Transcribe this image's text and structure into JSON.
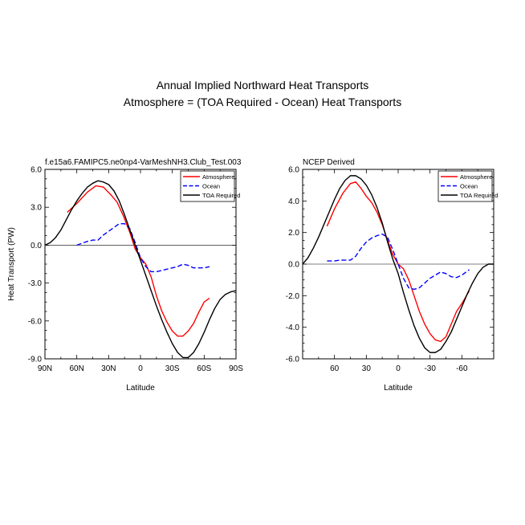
{
  "figure": {
    "title_line1": "Annual Implied Northward Heat Transports",
    "title_line2": "Atmosphere = (TOA Required - Ocean) Heat Transports"
  },
  "colors": {
    "atmosphere": "#ff0000",
    "ocean": "#0000ff",
    "toa": "#000000"
  },
  "chart_data": [
    {
      "type": "line",
      "title": "f.e15a6.FAMIPC5.ne0np4-VarMeshNH3.Club_Test.003",
      "xlabel": "Latitude",
      "ylabel": "Heat Transport (PW)",
      "xlim": [
        90,
        -90
      ],
      "ylim": [
        -9,
        6
      ],
      "xticks": [
        90,
        60,
        30,
        0,
        -30,
        -60,
        -90
      ],
      "xtick_labels": [
        "90N",
        "60N",
        "30N",
        "0",
        "30S",
        "60S",
        "90S"
      ],
      "yticks": [
        6,
        3,
        0,
        -3,
        -6,
        -9
      ],
      "ytick_labels": [
        "6.0",
        "3.0",
        "0.0",
        "-3.0",
        "-6.0",
        "-9.0"
      ],
      "legend": [
        "Atmosphere",
        "Ocean",
        "TOA Required"
      ],
      "legend_position": "top-right",
      "series": [
        {
          "name": "Atmosphere",
          "style": "solid",
          "x": [
            69,
            60,
            50,
            42,
            35,
            28,
            22,
            16,
            10,
            5,
            0,
            -5,
            -10,
            -15,
            -20,
            -25,
            -30,
            -35,
            -40,
            -45,
            -50,
            -55,
            -60,
            -65
          ],
          "y": [
            2.6,
            3.3,
            4.2,
            4.7,
            4.6,
            4.0,
            3.4,
            2.3,
            1.0,
            -0.3,
            -1.0,
            -1.5,
            -2.5,
            -4.0,
            -5.2,
            -6.1,
            -6.8,
            -7.2,
            -7.2,
            -6.8,
            -6.2,
            -5.3,
            -4.5,
            -4.2
          ]
        },
        {
          "name": "Ocean",
          "style": "dashed",
          "x": [
            60,
            50,
            45,
            40,
            35,
            30,
            25,
            20,
            15,
            10,
            5,
            0,
            -5,
            -10,
            -15,
            -20,
            -25,
            -30,
            -35,
            -40,
            -45,
            -50,
            -55,
            -60,
            -65
          ],
          "y": [
            0.0,
            0.3,
            0.4,
            0.4,
            0.8,
            1.1,
            1.4,
            1.7,
            1.7,
            1.3,
            0.2,
            -1.0,
            -1.7,
            -2.1,
            -2.1,
            -2.0,
            -1.9,
            -1.8,
            -1.7,
            -1.5,
            -1.6,
            -1.8,
            -1.8,
            -1.8,
            -1.7
          ]
        },
        {
          "name": "TOA Required",
          "style": "solid",
          "x": [
            90,
            85,
            80,
            75,
            70,
            65,
            60,
            55,
            50,
            45,
            40,
            35,
            30,
            25,
            20,
            15,
            10,
            5,
            0,
            -5,
            -10,
            -15,
            -20,
            -25,
            -30,
            -35,
            -40,
            -45,
            -50,
            -55,
            -60,
            -65,
            -70,
            -75,
            -80,
            -85,
            -90
          ],
          "y": [
            0.0,
            0.2,
            0.6,
            1.2,
            2.0,
            2.8,
            3.5,
            4.1,
            4.6,
            4.9,
            5.1,
            5.0,
            4.8,
            4.3,
            3.5,
            2.4,
            1.2,
            0.0,
            -1.2,
            -2.4,
            -3.6,
            -4.8,
            -5.9,
            -6.9,
            -7.8,
            -8.5,
            -8.9,
            -8.9,
            -8.5,
            -7.8,
            -6.9,
            -5.9,
            -5.0,
            -4.3,
            -3.9,
            -3.7,
            -3.6
          ]
        }
      ]
    },
    {
      "type": "line",
      "title": "NCEP Derived",
      "xlabel": "Latitude",
      "ylabel": "",
      "xlim": [
        90,
        -90
      ],
      "ylim": [
        -6,
        6
      ],
      "xticks": [
        60,
        30,
        0,
        -30,
        -60
      ],
      "xtick_labels": [
        "60",
        "30",
        "0",
        "-30",
        "-60"
      ],
      "yticks": [
        6,
        4,
        2,
        0,
        -2,
        -4,
        -6
      ],
      "ytick_labels": [
        "6.0",
        "4.0",
        "2.0",
        "0.0",
        "-2.0",
        "-4.0",
        "-6.0"
      ],
      "legend": [
        "Atmosphere",
        "Ocean",
        "TOA Required"
      ],
      "legend_position": "top-right",
      "series": [
        {
          "name": "Atmosphere",
          "style": "solid",
          "x": [
            67,
            60,
            52,
            45,
            40,
            35,
            30,
            25,
            20,
            15,
            10,
            5,
            0,
            -5,
            -10,
            -15,
            -20,
            -25,
            -30,
            -35,
            -40,
            -45,
            -50,
            -55,
            -60,
            -67
          ],
          "y": [
            2.4,
            3.5,
            4.5,
            5.1,
            5.2,
            4.8,
            4.3,
            3.9,
            3.3,
            2.5,
            1.5,
            0.6,
            0.0,
            -0.3,
            -1.0,
            -2.0,
            -3.0,
            -3.8,
            -4.4,
            -4.8,
            -4.9,
            -4.6,
            -3.8,
            -3.0,
            -2.5,
            -1.7
          ]
        },
        {
          "name": "Ocean",
          "style": "dashed",
          "x": [
            67,
            60,
            55,
            50,
            45,
            40,
            35,
            30,
            25,
            20,
            15,
            10,
            5,
            0,
            -5,
            -10,
            -15,
            -20,
            -25,
            -30,
            -35,
            -40,
            -45,
            -50,
            -55,
            -60,
            -67
          ],
          "y": [
            0.2,
            0.2,
            0.25,
            0.25,
            0.25,
            0.5,
            1.0,
            1.4,
            1.65,
            1.8,
            1.9,
            1.7,
            0.9,
            0.0,
            -0.9,
            -1.5,
            -1.6,
            -1.5,
            -1.2,
            -0.9,
            -0.7,
            -0.5,
            -0.6,
            -0.8,
            -0.85,
            -0.7,
            -0.35
          ]
        },
        {
          "name": "TOA Required",
          "style": "solid",
          "x": [
            90,
            85,
            80,
            75,
            70,
            65,
            60,
            55,
            50,
            45,
            40,
            35,
            30,
            25,
            20,
            15,
            10,
            5,
            0,
            -5,
            -10,
            -15,
            -20,
            -25,
            -30,
            -35,
            -40,
            -45,
            -50,
            -55,
            -60,
            -65,
            -70,
            -75,
            -80,
            -85,
            -90
          ],
          "y": [
            0.0,
            0.4,
            1.0,
            1.7,
            2.5,
            3.3,
            4.1,
            4.8,
            5.3,
            5.6,
            5.6,
            5.4,
            5.0,
            4.4,
            3.6,
            2.6,
            1.4,
            0.3,
            -0.6,
            -1.8,
            -2.9,
            -3.9,
            -4.7,
            -5.3,
            -5.6,
            -5.6,
            -5.4,
            -4.9,
            -4.3,
            -3.5,
            -2.7,
            -1.9,
            -1.2,
            -0.6,
            -0.2,
            0.0,
            0.0
          ]
        }
      ]
    }
  ]
}
